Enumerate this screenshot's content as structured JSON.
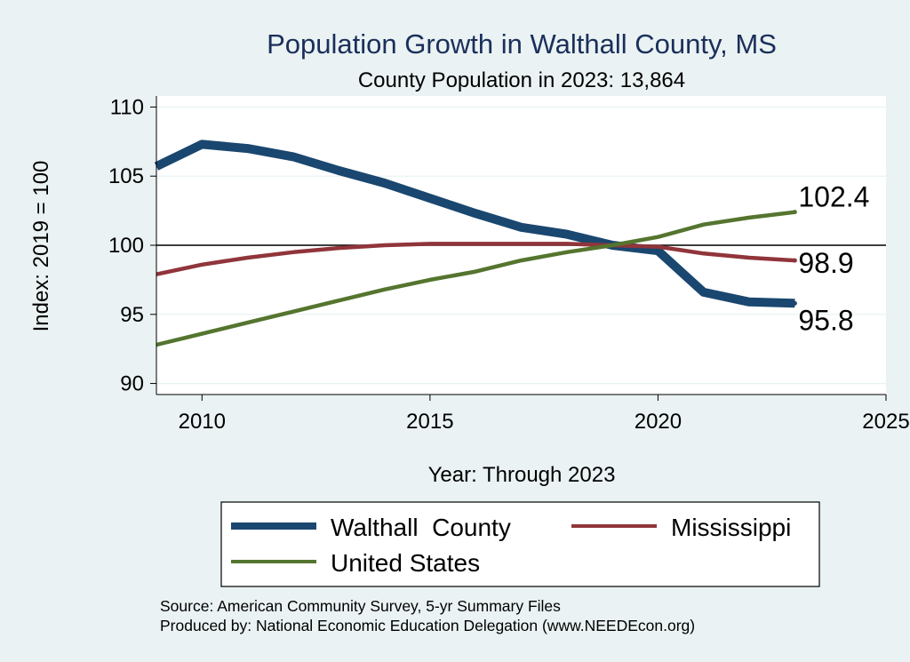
{
  "chart_data": {
    "type": "line",
    "title": "Population Growth in Walthall County, MS",
    "subtitle": "County Population in 2023: 13,864",
    "xlabel": "Year: Through 2023",
    "ylabel": "Index: 2019 = 100",
    "xlim": [
      2009,
      2025
    ],
    "ylim": [
      89.2,
      110.8
    ],
    "x_ticks": [
      2010,
      2015,
      2020,
      2025
    ],
    "y_ticks": [
      90,
      95,
      100,
      105,
      110
    ],
    "reference_line": 100,
    "grid": true,
    "legend_position": "bottom",
    "x": [
      2009,
      2010,
      2011,
      2012,
      2013,
      2014,
      2015,
      2016,
      2017,
      2018,
      2019,
      2020,
      2021,
      2022,
      2023
    ],
    "series": [
      {
        "name": "Walthall  County",
        "color": "#1a476f",
        "values": [
          105.7,
          107.3,
          107.0,
          106.4,
          105.4,
          104.5,
          103.4,
          102.3,
          101.3,
          100.8,
          100.0,
          99.6,
          96.6,
          95.9,
          95.8
        ],
        "end_label": "95.8"
      },
      {
        "name": "Mississippi",
        "color": "#90353b",
        "values": [
          97.9,
          98.6,
          99.1,
          99.5,
          99.8,
          100.0,
          100.1,
          100.1,
          100.1,
          100.1,
          100.0,
          99.9,
          99.4,
          99.1,
          98.9
        ],
        "end_label": "98.9"
      },
      {
        "name": "United States",
        "color": "#55752f",
        "values": [
          92.8,
          93.6,
          94.4,
          95.2,
          96.0,
          96.8,
          97.5,
          98.1,
          98.9,
          99.5,
          100.0,
          100.6,
          101.5,
          102.0,
          102.4
        ],
        "end_label": "102.4"
      }
    ]
  },
  "footer": {
    "source": "Source: American Community Survey, 5-yr Summary Files",
    "produced_by": "Produced by: National Economic Education Delegation (www.NEEDEcon.org)"
  }
}
